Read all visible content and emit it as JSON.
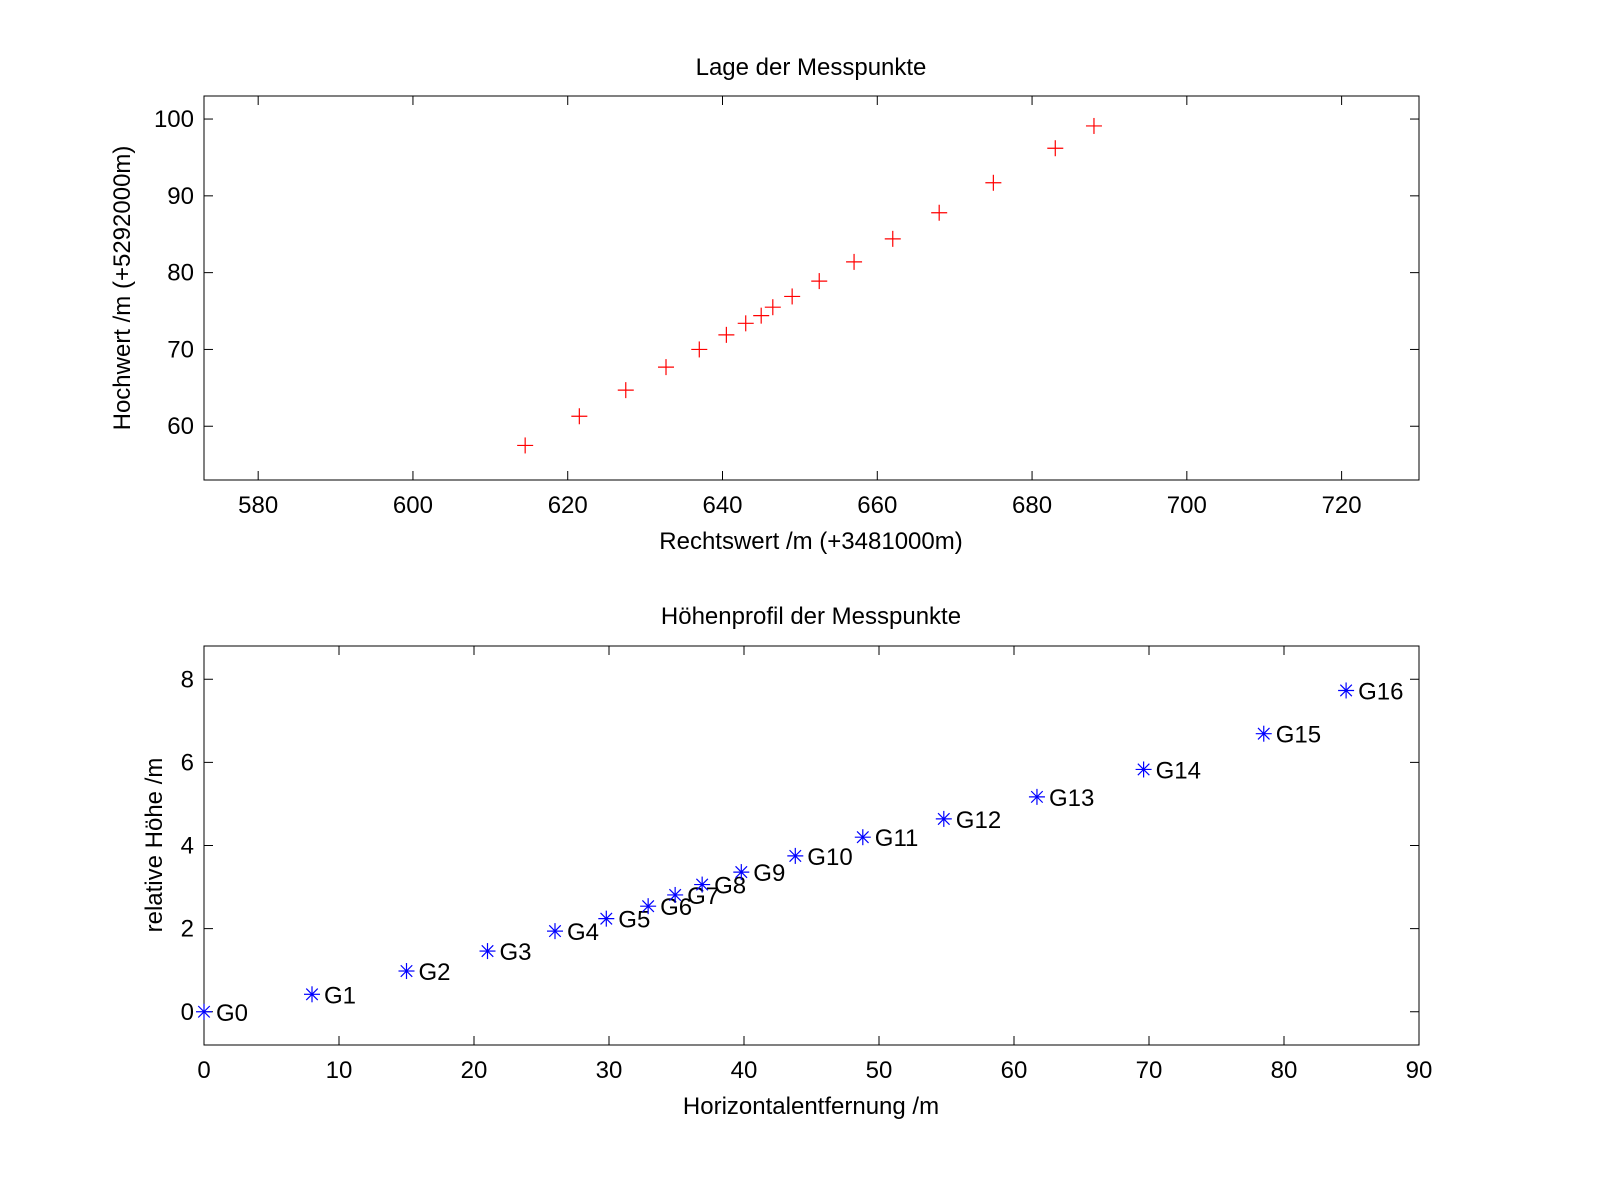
{
  "chart_data": [
    {
      "type": "scatter",
      "title": "Lage der Messpunkte",
      "xlabel": "Rechtswert /m (+3481000m)",
      "ylabel": "Hochwert /m (+5292000m)",
      "xlim": [
        573,
        730
      ],
      "ylim": [
        53,
        103
      ],
      "xticks": [
        580,
        600,
        620,
        640,
        660,
        680,
        700,
        720
      ],
      "yticks": [
        60,
        70,
        80,
        90,
        100
      ],
      "marker": "+",
      "color": "#ff0000",
      "grid": false,
      "series": [
        {
          "x": [
            614.5,
            621.5,
            627.5,
            632.7,
            637,
            640.5,
            643,
            645,
            646.5,
            649,
            652.5,
            657,
            662,
            668,
            675,
            683,
            688
          ],
          "y": [
            57.5,
            61.3,
            64.7,
            67.7,
            70,
            71.9,
            73.4,
            74.4,
            75.5,
            76.9,
            78.9,
            81.4,
            84.4,
            87.8,
            91.7,
            96.2,
            99.1
          ]
        }
      ]
    },
    {
      "type": "scatter",
      "title": "Höhenprofil der Messpunkte",
      "xlabel": "Horizontalentfernung /m",
      "ylabel": "relative Höhe /m",
      "xlim": [
        0,
        90
      ],
      "ylim": [
        -0.8,
        8.8
      ],
      "xticks": [
        0,
        10,
        20,
        30,
        40,
        50,
        60,
        70,
        80,
        90
      ],
      "yticks": [
        0,
        2,
        4,
        6,
        8
      ],
      "marker": "*",
      "color": "#0000ff",
      "grid": false,
      "series": [
        {
          "x": [
            0,
            8,
            15,
            21,
            26,
            29.8,
            32.9,
            34.9,
            36.9,
            39.8,
            43.8,
            48.8,
            54.8,
            61.7,
            69.6,
            78.5,
            84.6
          ],
          "y": [
            0,
            0.42,
            0.98,
            1.46,
            1.94,
            2.24,
            2.54,
            2.81,
            3.06,
            3.36,
            3.75,
            4.2,
            4.64,
            5.17,
            5.83,
            6.69,
            7.73
          ],
          "labels": [
            "G0",
            "G1",
            "G2",
            "G3",
            "G4",
            "G5",
            "G6",
            "G7",
            "G8",
            "G9",
            "G10",
            "G11",
            "G12",
            "G13",
            "G14",
            "G15",
            "G16"
          ]
        }
      ]
    }
  ]
}
